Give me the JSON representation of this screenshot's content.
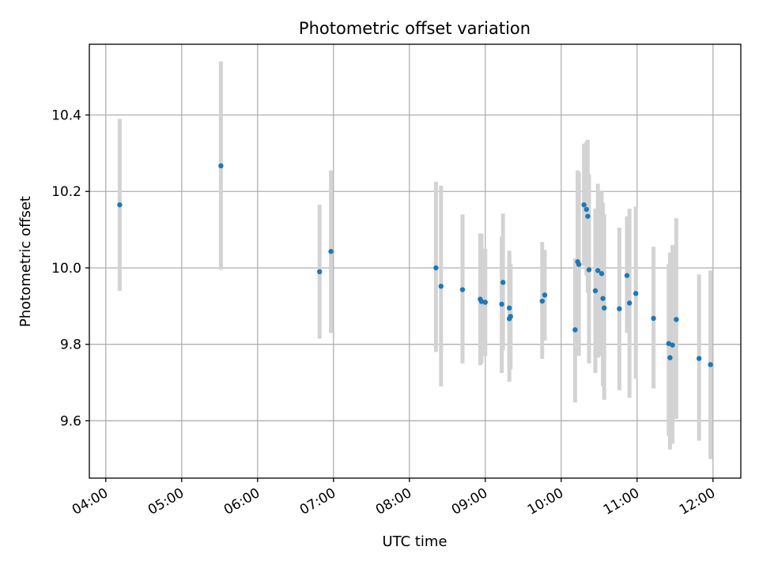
{
  "chart_data": {
    "type": "scatter",
    "title": "Photometric offset variation",
    "xlabel": "UTC time",
    "ylabel": "Photometric offset",
    "xlim": [
      "03:47",
      "12:22"
    ],
    "ylim": [
      9.45,
      10.585
    ],
    "x_ticks": [
      "04:00",
      "05:00",
      "06:00",
      "07:00",
      "08:00",
      "09:00",
      "10:00",
      "11:00",
      "12:00"
    ],
    "y_ticks": [
      9.6,
      9.8,
      10.0,
      10.2,
      10.4
    ],
    "grid": true,
    "legend": "none",
    "colors": {
      "point": "#1f77b4",
      "errorbar": "#d3d3d3",
      "grid": "#b0b0b0"
    },
    "series": [
      {
        "points": [
          {
            "x": "04:11",
            "y": 10.165,
            "ylow": 9.94,
            "yhigh": 10.39
          },
          {
            "x": "05:31",
            "y": 10.267,
            "ylow": 9.995,
            "yhigh": 10.54
          },
          {
            "x": "06:49",
            "y": 9.99,
            "ylow": 9.815,
            "yhigh": 10.165
          },
          {
            "x": "06:58",
            "y": 10.043,
            "ylow": 9.83,
            "yhigh": 10.255
          },
          {
            "x": "08:21",
            "y": 10.0,
            "ylow": 9.78,
            "yhigh": 10.225
          },
          {
            "x": "08:25",
            "y": 9.952,
            "ylow": 9.69,
            "yhigh": 10.215
          },
          {
            "x": "08:42",
            "y": 9.943,
            "ylow": 9.75,
            "yhigh": 10.14
          },
          {
            "x": "08:56",
            "y": 9.918,
            "ylow": 9.745,
            "yhigh": 10.09
          },
          {
            "x": "08:57",
            "y": 9.912,
            "ylow": 9.75,
            "yhigh": 10.09
          },
          {
            "x": "09:00",
            "y": 9.91,
            "ylow": 9.77,
            "yhigh": 10.05
          },
          {
            "x": "09:13",
            "y": 9.905,
            "ylow": 9.725,
            "yhigh": 10.082
          },
          {
            "x": "09:14",
            "y": 9.962,
            "ylow": 9.785,
            "yhigh": 10.142
          },
          {
            "x": "09:19",
            "y": 9.895,
            "ylow": 9.745,
            "yhigh": 10.045
          },
          {
            "x": "09:19",
            "y": 9.867,
            "ylow": 9.702,
            "yhigh": 10.032
          },
          {
            "x": "09:20",
            "y": 9.873,
            "ylow": 9.735,
            "yhigh": 10.01
          },
          {
            "x": "09:45",
            "y": 9.913,
            "ylow": 9.762,
            "yhigh": 10.068
          },
          {
            "x": "09:47",
            "y": 9.929,
            "ylow": 9.81,
            "yhigh": 10.047
          },
          {
            "x": "10:11",
            "y": 9.838,
            "ylow": 9.648,
            "yhigh": 10.025
          },
          {
            "x": "10:13",
            "y": 10.016,
            "ylow": 9.775,
            "yhigh": 10.255
          },
          {
            "x": "10:14",
            "y": 10.009,
            "ylow": 9.77,
            "yhigh": 10.25
          },
          {
            "x": "10:18",
            "y": 10.165,
            "ylow": 10.005,
            "yhigh": 10.325
          },
          {
            "x": "10:20",
            "y": 10.153,
            "ylow": 9.98,
            "yhigh": 10.33
          },
          {
            "x": "10:21",
            "y": 10.135,
            "ylow": 9.935,
            "yhigh": 10.335
          },
          {
            "x": "10:22",
            "y": 9.995,
            "ylow": 9.75,
            "yhigh": 10.245
          },
          {
            "x": "10:27",
            "y": 9.94,
            "ylow": 9.725,
            "yhigh": 10.155
          },
          {
            "x": "10:29",
            "y": 9.993,
            "ylow": 9.765,
            "yhigh": 10.22
          },
          {
            "x": "10:32",
            "y": 9.985,
            "ylow": 9.77,
            "yhigh": 10.2
          },
          {
            "x": "10:33",
            "y": 9.92,
            "ylow": 9.69,
            "yhigh": 10.17
          },
          {
            "x": "10:34",
            "y": 9.895,
            "ylow": 9.655,
            "yhigh": 10.14
          },
          {
            "x": "10:46",
            "y": 9.893,
            "ylow": 9.68,
            "yhigh": 10.105
          },
          {
            "x": "10:52",
            "y": 9.98,
            "ylow": 9.83,
            "yhigh": 10.135
          },
          {
            "x": "10:54",
            "y": 9.908,
            "ylow": 9.66,
            "yhigh": 10.155
          },
          {
            "x": "10:59",
            "y": 9.933,
            "ylow": 9.71,
            "yhigh": 10.16
          },
          {
            "x": "11:13",
            "y": 9.868,
            "ylow": 9.685,
            "yhigh": 10.055
          },
          {
            "x": "11:25",
            "y": 9.802,
            "ylow": 9.56,
            "yhigh": 10.01
          },
          {
            "x": "11:26",
            "y": 9.765,
            "ylow": 9.525,
            "yhigh": 10.04
          },
          {
            "x": "11:28",
            "y": 9.798,
            "ylow": 9.54,
            "yhigh": 10.06
          },
          {
            "x": "11:31",
            "y": 9.865,
            "ylow": 9.605,
            "yhigh": 10.13
          },
          {
            "x": "11:49",
            "y": 9.763,
            "ylow": 9.548,
            "yhigh": 9.983
          },
          {
            "x": "11:58",
            "y": 9.747,
            "ylow": 9.5,
            "yhigh": 9.993
          }
        ]
      }
    ]
  }
}
